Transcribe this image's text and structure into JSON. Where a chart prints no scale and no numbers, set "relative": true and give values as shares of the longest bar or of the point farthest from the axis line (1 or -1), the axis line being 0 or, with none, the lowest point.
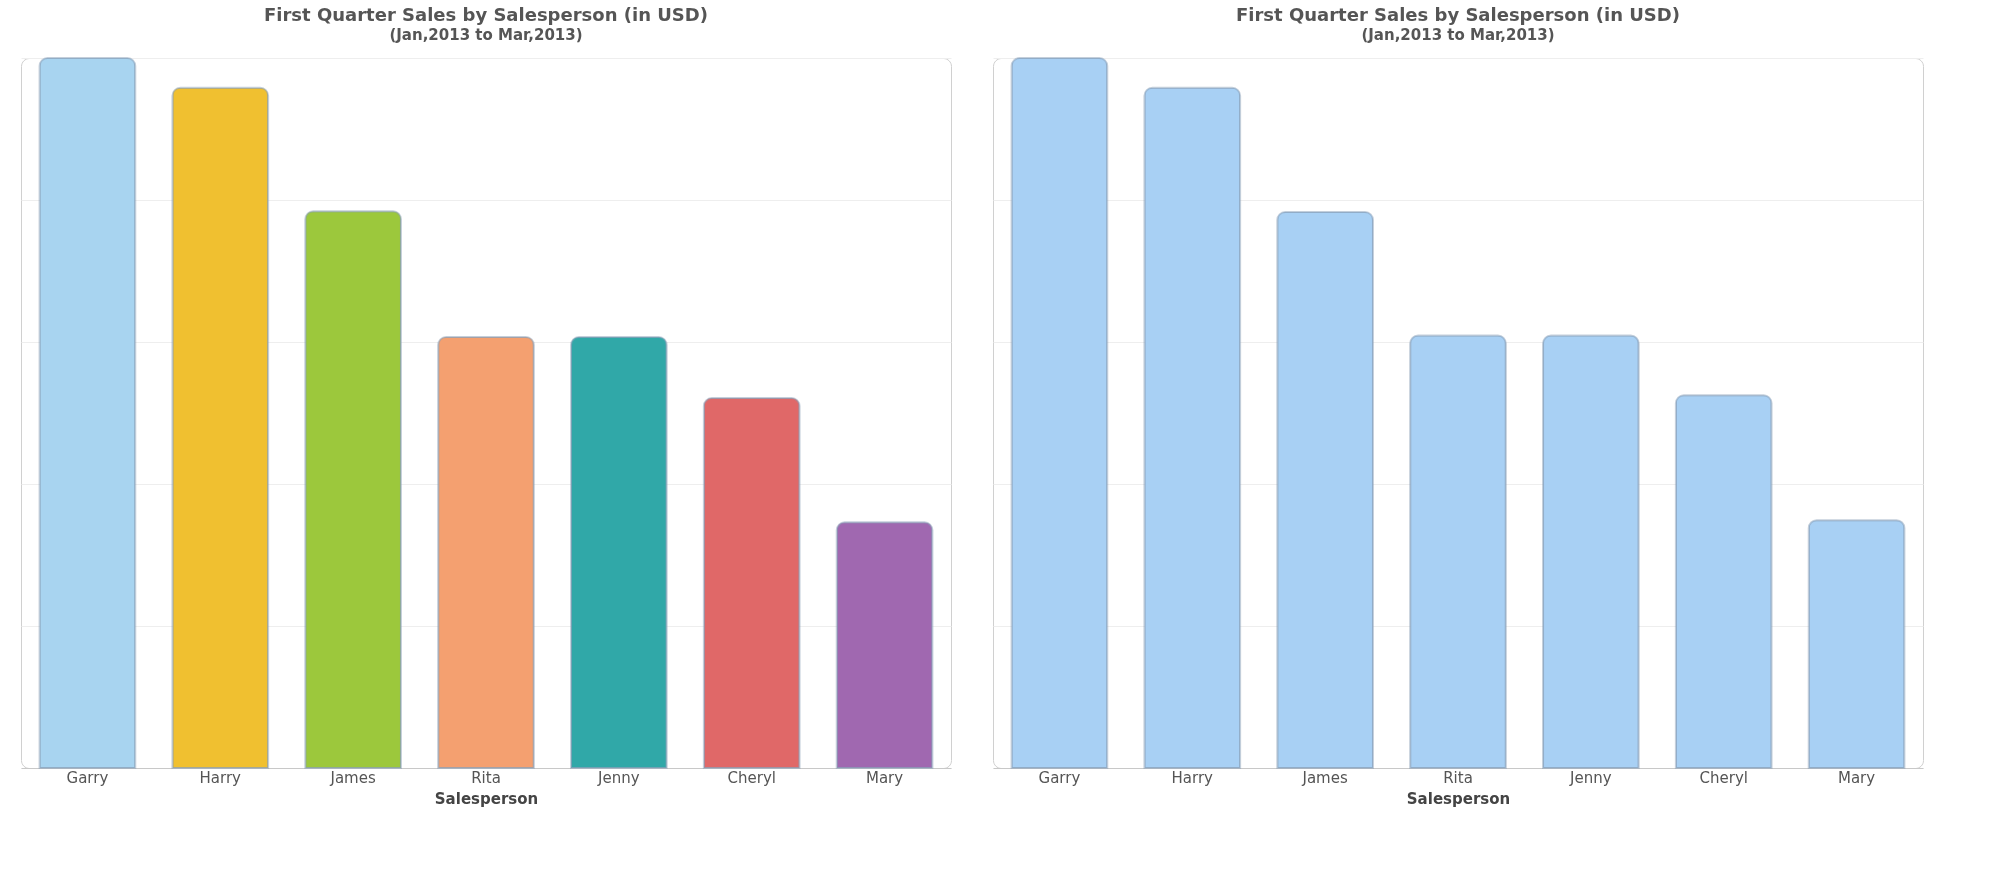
{
  "chart_data": [
    {
      "type": "bar",
      "title": "First Quarter Sales by Salesperson (in USD)",
      "subtitle": "(Jan,2013 to Mar,2013)",
      "xlabel": "Salesperson",
      "categories": [
        "Garry",
        "Harry",
        "James",
        "Rita",
        "Jenny",
        "Cheryl",
        "Mary"
      ],
      "values": [
        1,
        0.958,
        0.784,
        0.607,
        0.607,
        0.521,
        0.346
      ],
      "colors": [
        "#a8d4f0",
        "#f0c030",
        "#9cc83c",
        "#f4a070",
        "#30a8a8",
        "#e06868",
        "#a068b0"
      ],
      "relative": true,
      "grid": "y"
    },
    {
      "type": "bar",
      "title": "First Quarter Sales by Salesperson (in USD)",
      "subtitle": "(Jan,2013 to Mar,2013)",
      "xlabel": "Salesperson",
      "categories": [
        "Garry",
        "Harry",
        "James",
        "Rita",
        "Jenny",
        "Cheryl",
        "Mary"
      ],
      "values": [
        1,
        0.958,
        0.783,
        0.609,
        0.609,
        0.525,
        0.349
      ],
      "color": "#a8d0f4",
      "relative": true,
      "grid": "y"
    }
  ]
}
